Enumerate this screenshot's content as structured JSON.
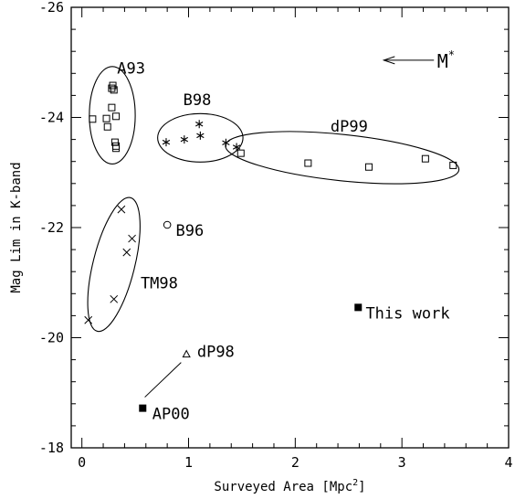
{
  "chart_data": {
    "type": "scatter",
    "xlabel": "Surveyed Area [Mpc",
    "xlabel_sup": "2",
    "xlabel_tail": "]",
    "ylabel": "Mag Lim in K-band",
    "xlim": [
      -0.1,
      4
    ],
    "ylim": [
      -18,
      -26
    ],
    "x_ticks": [
      0,
      1,
      2,
      3,
      4
    ],
    "y_ticks": [
      -18,
      -20,
      -22,
      -24,
      -26
    ],
    "x_tick_labels": [
      "0",
      "1",
      "2",
      "3",
      "4"
    ],
    "y_tick_labels": [
      "-18",
      "-20",
      "-22",
      "-24",
      "-26"
    ],
    "grid": false,
    "series": [
      {
        "name": "A93",
        "marker": "square",
        "points": [
          {
            "x": 0.1,
            "y": -23.97
          },
          {
            "x": 0.23,
            "y": -23.98
          },
          {
            "x": 0.24,
            "y": -23.83
          },
          {
            "x": 0.28,
            "y": -24.53
          },
          {
            "x": 0.29,
            "y": -24.58
          },
          {
            "x": 0.3,
            "y": -24.5
          },
          {
            "x": 0.28,
            "y": -24.18
          },
          {
            "x": 0.32,
            "y": -24.02
          },
          {
            "x": 0.31,
            "y": -23.55
          },
          {
            "x": 0.32,
            "y": -23.48
          },
          {
            "x": 0.32,
            "y": -23.44
          }
        ]
      },
      {
        "name": "B98",
        "marker": "asterisk",
        "points": [
          {
            "x": 0.79,
            "y": -23.55
          },
          {
            "x": 0.96,
            "y": -23.6
          },
          {
            "x": 1.1,
            "y": -23.88
          },
          {
            "x": 1.11,
            "y": -23.67
          },
          {
            "x": 1.35,
            "y": -23.54
          },
          {
            "x": 1.45,
            "y": -23.46
          }
        ]
      },
      {
        "name": "dP99",
        "marker": "square",
        "points": [
          {
            "x": 1.49,
            "y": -23.35
          },
          {
            "x": 2.12,
            "y": -23.17
          },
          {
            "x": 2.69,
            "y": -23.1
          },
          {
            "x": 3.22,
            "y": -23.25
          },
          {
            "x": 3.48,
            "y": -23.13
          }
        ]
      },
      {
        "name": "B96",
        "marker": "circle",
        "points": [
          {
            "x": 0.8,
            "y": -22.05
          }
        ]
      },
      {
        "name": "TM98",
        "marker": "cross",
        "points": [
          {
            "x": 0.06,
            "y": -20.32
          },
          {
            "x": 0.3,
            "y": -20.7
          },
          {
            "x": 0.37,
            "y": -22.33
          },
          {
            "x": 0.42,
            "y": -21.55
          },
          {
            "x": 0.47,
            "y": -21.8
          }
        ]
      },
      {
        "name": "dP98",
        "marker": "triangle",
        "points": [
          {
            "x": 0.98,
            "y": -19.7
          }
        ]
      },
      {
        "name": "AP00",
        "marker": "filled-square",
        "points": [
          {
            "x": 0.57,
            "y": -18.72
          }
        ]
      },
      {
        "name": "This work",
        "marker": "filled-square",
        "points": [
          {
            "x": 2.59,
            "y": -20.55
          }
        ]
      }
    ],
    "annotations": [
      {
        "text": "M",
        "sup": "*",
        "arrow": "left"
      }
    ]
  }
}
